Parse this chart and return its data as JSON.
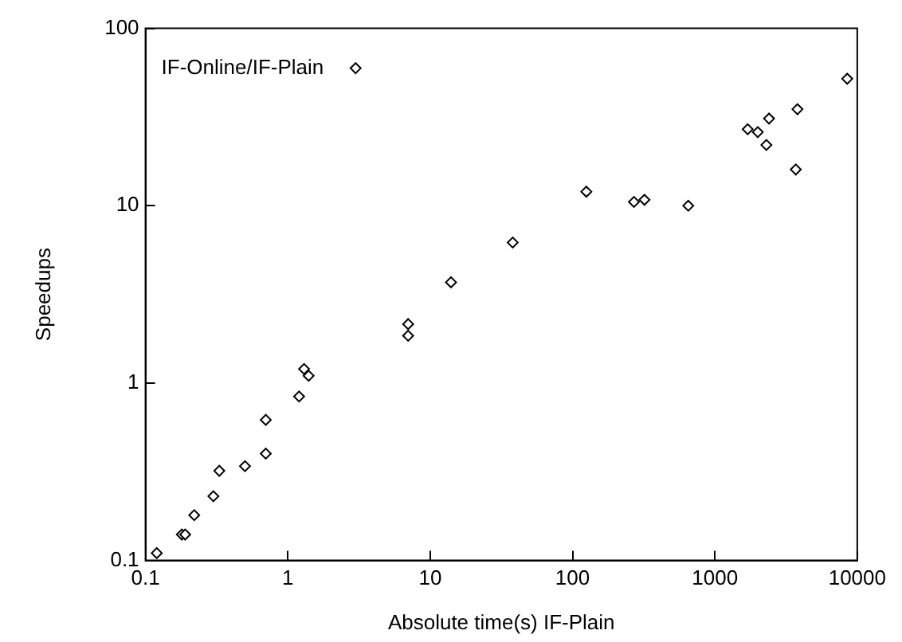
{
  "chart_data": {
    "type": "scatter",
    "xlabel": "Absolute time(s) IF-Plain",
    "ylabel": "Speedups",
    "log": "xy",
    "grid": false,
    "legend": "top left",
    "marker": "diamond",
    "xlim": [
      0.1,
      10000
    ],
    "xticks": [
      0.1,
      1,
      10,
      100,
      1000,
      10000
    ],
    "ylim": [
      0.1,
      100
    ],
    "yticks": [
      0.1,
      1,
      10,
      100
    ],
    "series": [
      {
        "name": "IF-Online/IF-Plain",
        "color": "#000000",
        "x": [
          0.12,
          0.18,
          0.19,
          0.22,
          0.3,
          0.33,
          0.5,
          0.7,
          0.7,
          1.2,
          1.3,
          1.4,
          7,
          7,
          14,
          38,
          125,
          270,
          320,
          650,
          1700,
          2000,
          2300,
          2400,
          3700,
          3800,
          8500
        ],
        "values": [
          0.11,
          0.14,
          0.14,
          0.18,
          0.23,
          0.32,
          0.34,
          0.4,
          0.62,
          0.84,
          1.2,
          1.1,
          1.85,
          2.15,
          3.7,
          6.2,
          12,
          10.5,
          10.8,
          10,
          27,
          26,
          22,
          31,
          16,
          35,
          52
        ]
      }
    ]
  }
}
